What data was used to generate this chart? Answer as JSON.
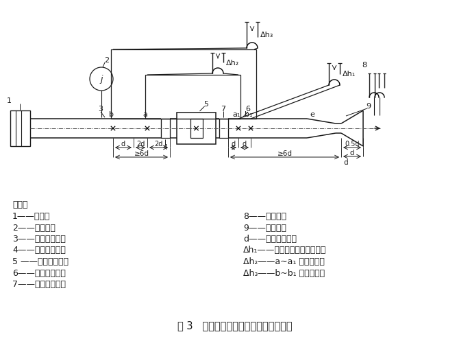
{
  "title": "图 3   压力损失和通气量试验装置示意图",
  "bg": "#ffffff",
  "lc": "#1a1a1a",
  "legend_left": [
    "说明：",
    "1——风机；",
    "2——温度计；",
    "3——出气试验管；",
    "4——出气整流栋；",
    "5 ——被测阻火器；",
    "6——进气试验管；",
    "7——进气整流栋；"
  ],
  "legend_right": [
    "8——皮托管；",
    "9——集流器；",
    "d——试验管内径；",
    "Δh₁——试验管路内气体动压；",
    "Δh₂——a~a₁ 段的压差；",
    "Δh₃——b~b₁ 段的压差。"
  ]
}
